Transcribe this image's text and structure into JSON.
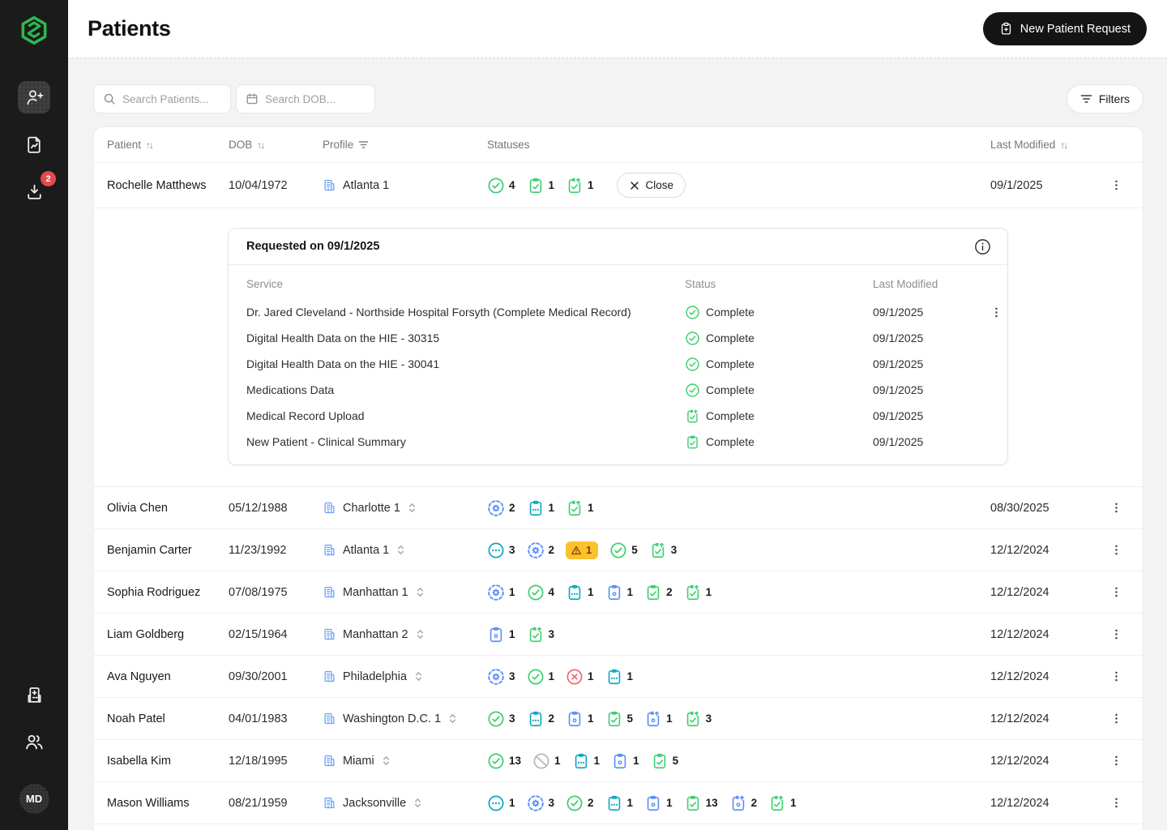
{
  "colors": {
    "green": "#3ecf70",
    "teal": "#0ba8c5",
    "blue": "#5b8ff7",
    "red": "#f16a6a",
    "gray": "#b3b8bf",
    "amber_bg": "#fcc22d",
    "amber_fg": "#8a4b0f",
    "brand_green": "#2db84f",
    "badge_red": "#e5484d",
    "profile_blue": "#6aa2f8"
  },
  "sidebar": {
    "badge_count": "2",
    "avatar_initials": "MD"
  },
  "header": {
    "title": "Patients",
    "new_request_label": "New Patient Request"
  },
  "toolbar": {
    "search_patients_placeholder": "Search Patients...",
    "search_dob_placeholder": "Search DOB...",
    "filters_label": "Filters"
  },
  "table": {
    "columns": {
      "patient": "Patient",
      "dob": "DOB",
      "profile": "Profile",
      "statuses": "Statuses",
      "last_modified": "Last Modified"
    },
    "close_label": "Close",
    "rows": [
      {
        "patient": "Rochelle Matthews",
        "dob": "10/04/1972",
        "profile": "Atlanta 1",
        "chevron": false,
        "close_button": true,
        "expanded": true,
        "modified": "09/1/2025",
        "statuses": [
          {
            "type": "check-circle",
            "count": "4"
          },
          {
            "type": "clipboard-check",
            "count": "1"
          },
          {
            "type": "clipboard-up-check",
            "count": "1"
          }
        ]
      },
      {
        "patient": "Olivia Chen",
        "dob": "05/12/1988",
        "profile": "Charlotte 1",
        "chevron": true,
        "modified": "08/30/2025",
        "statuses": [
          {
            "type": "gear-circle",
            "count": "2"
          },
          {
            "type": "clipboard-dots",
            "count": "1"
          },
          {
            "type": "clipboard-up-check",
            "count": "1"
          }
        ]
      },
      {
        "patient": "Benjamin Carter",
        "dob": "11/23/1992",
        "profile": "Atlanta 1",
        "chevron": true,
        "modified": "12/12/2024",
        "statuses": [
          {
            "type": "dots-circle",
            "count": "3"
          },
          {
            "type": "gear-circle",
            "count": "2"
          },
          {
            "type": "warning",
            "count": "1"
          },
          {
            "type": "check-circle",
            "count": "5"
          },
          {
            "type": "clipboard-up-check",
            "count": "3"
          }
        ]
      },
      {
        "patient": "Sophia Rodriguez",
        "dob": "07/08/1975",
        "profile": "Manhattan 1",
        "chevron": true,
        "modified": "12/12/2024",
        "statuses": [
          {
            "type": "gear-circle",
            "count": "1"
          },
          {
            "type": "check-circle",
            "count": "4"
          },
          {
            "type": "clipboard-dots",
            "count": "1"
          },
          {
            "type": "clipboard-gear",
            "count": "1"
          },
          {
            "type": "clipboard-check",
            "count": "2"
          },
          {
            "type": "clipboard-up-check",
            "count": "1"
          }
        ]
      },
      {
        "patient": "Liam Goldberg",
        "dob": "02/15/1964",
        "profile": "Manhattan 2",
        "chevron": true,
        "modified": "12/12/2024",
        "statuses": [
          {
            "type": "clipboard-gear",
            "count": "1"
          },
          {
            "type": "clipboard-up-check",
            "count": "3"
          }
        ]
      },
      {
        "patient": "Ava Nguyen",
        "dob": "09/30/2001",
        "profile": "Philadelphia",
        "chevron": true,
        "modified": "12/12/2024",
        "statuses": [
          {
            "type": "gear-circle",
            "count": "3"
          },
          {
            "type": "check-circle",
            "count": "1"
          },
          {
            "type": "x-circle",
            "count": "1"
          },
          {
            "type": "clipboard-dots",
            "count": "1"
          }
        ]
      },
      {
        "patient": "Noah Patel",
        "dob": "04/01/1983",
        "profile": "Washington D.C. 1",
        "chevron": true,
        "modified": "12/12/2024",
        "statuses": [
          {
            "type": "check-circle",
            "count": "3"
          },
          {
            "type": "clipboard-dots",
            "count": "2"
          },
          {
            "type": "clipboard-gear",
            "count": "1"
          },
          {
            "type": "clipboard-check",
            "count": "5"
          },
          {
            "type": "clipboard-up-gear",
            "count": "1"
          },
          {
            "type": "clipboard-up-check",
            "count": "3"
          }
        ]
      },
      {
        "patient": "Isabella Kim",
        "dob": "12/18/1995",
        "profile": "Miami",
        "chevron": true,
        "modified": "12/12/2024",
        "statuses": [
          {
            "type": "check-circle",
            "count": "13"
          },
          {
            "type": "slash-circle",
            "count": "1"
          },
          {
            "type": "clipboard-dots",
            "count": "1"
          },
          {
            "type": "clipboard-gear",
            "count": "1"
          },
          {
            "type": "clipboard-check",
            "count": "5"
          }
        ]
      },
      {
        "patient": "Mason Williams",
        "dob": "08/21/1959",
        "profile": "Jacksonville",
        "chevron": true,
        "modified": "12/12/2024",
        "statuses": [
          {
            "type": "dots-circle",
            "count": "1"
          },
          {
            "type": "gear-circle",
            "count": "3"
          },
          {
            "type": "check-circle",
            "count": "2"
          },
          {
            "type": "clipboard-dots",
            "count": "1"
          },
          {
            "type": "clipboard-gear",
            "count": "1"
          },
          {
            "type": "clipboard-check",
            "count": "13"
          },
          {
            "type": "clipboard-up-gear",
            "count": "2"
          },
          {
            "type": "clipboard-up-check",
            "count": "1"
          }
        ]
      },
      {
        "patient": "",
        "dob": "",
        "profile": "",
        "chevron": false,
        "partial": true,
        "modified": "",
        "statuses": [
          {
            "type": "clipboard-gear",
            "count": ""
          },
          {
            "type": "check-circle",
            "count": ""
          },
          {
            "type": "clipboard-dots",
            "count": ""
          },
          {
            "type": "clipboard-check",
            "count": ""
          }
        ]
      }
    ]
  },
  "expanded": {
    "title": "Requested on 09/1/2025",
    "columns": {
      "service": "Service",
      "status": "Status",
      "last_modified": "Last Modified"
    },
    "services": [
      {
        "service": "Dr. Jared Cleveland - Northside Hospital Forsyth (Complete Medical Record)",
        "icon": "check-circle",
        "status": "Complete",
        "date": "09/1/2025",
        "menu": true
      },
      {
        "service": "Digital Health Data on the HIE - 30315",
        "icon": "check-circle",
        "status": "Complete",
        "date": "09/1/2025"
      },
      {
        "service": "Digital Health Data on the HIE - 30041",
        "icon": "check-circle",
        "status": "Complete",
        "date": "09/1/2025"
      },
      {
        "service": "Medications Data",
        "icon": "check-circle",
        "status": "Complete",
        "date": "09/1/2025"
      },
      {
        "service": "Medical Record Upload",
        "icon": "clipboard-up-check",
        "status": "Complete",
        "date": "09/1/2025"
      },
      {
        "service": "New Patient - Clinical Summary",
        "icon": "clipboard-check",
        "status": "Complete",
        "date": "09/1/2025"
      }
    ]
  }
}
